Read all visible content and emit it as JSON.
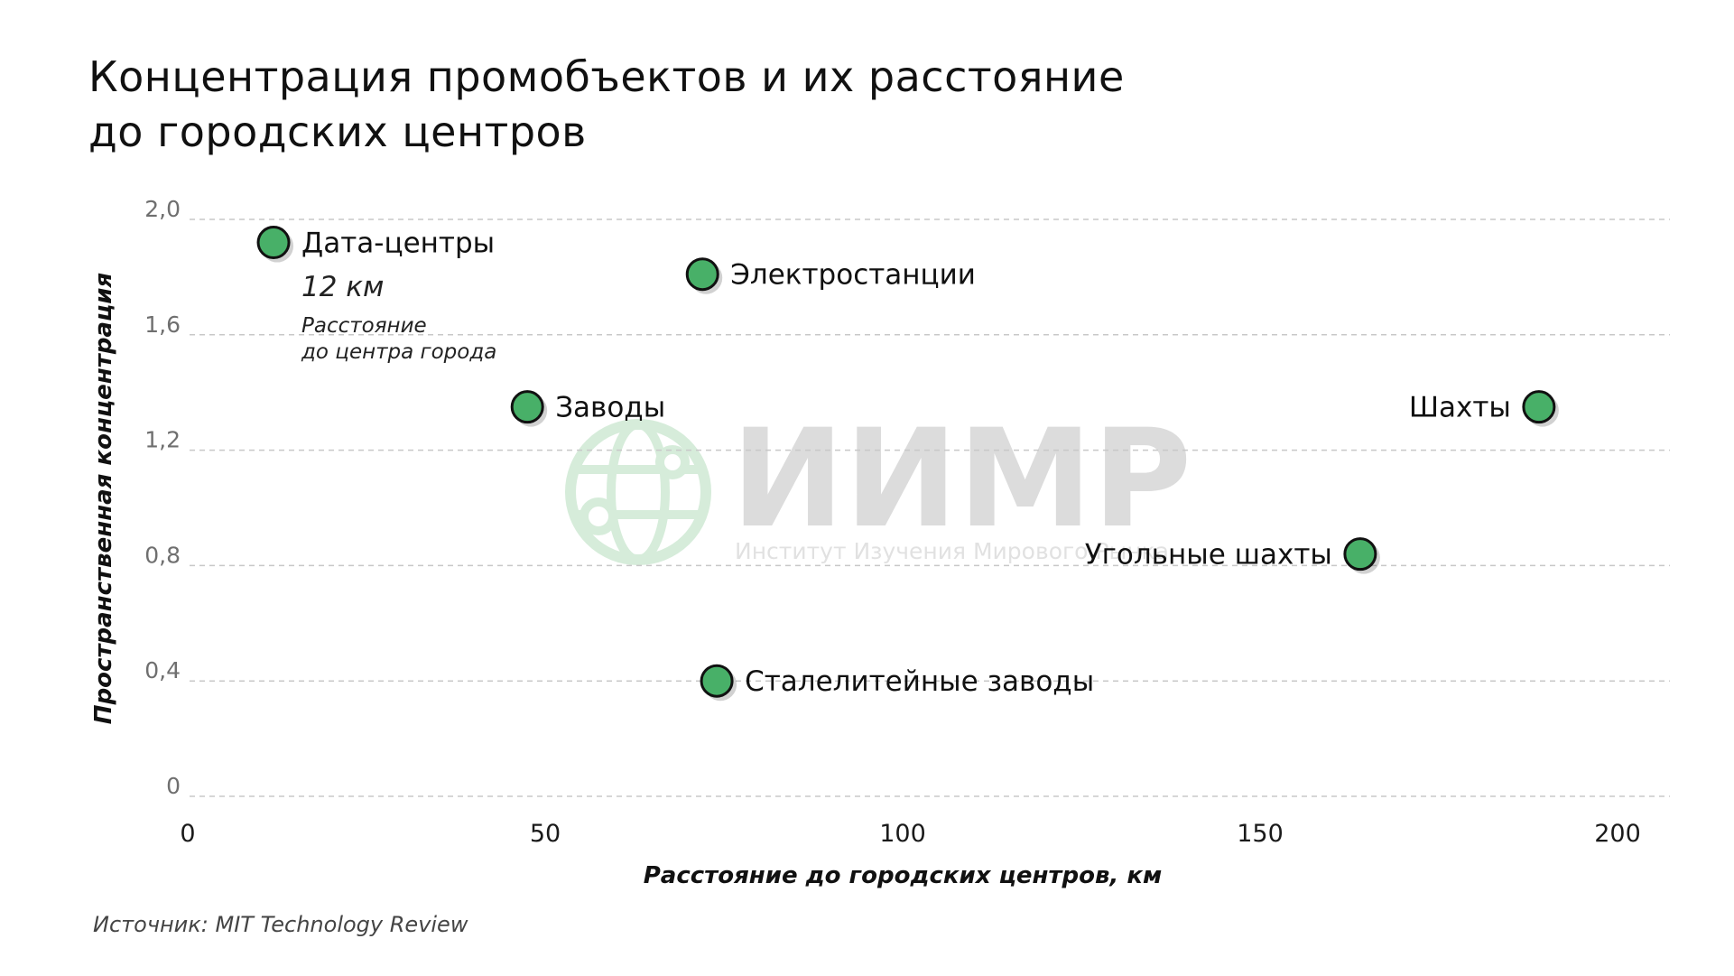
{
  "title_lines": [
    "Концентрация промобъектов и их расстояние",
    "до городских центров"
  ],
  "source": "Источник: MIT Technology Review",
  "watermark": {
    "name": "ИИМР",
    "subtitle": "Институт Изучения Мирового Рынка",
    "color": "#cfe9d4"
  },
  "annotation": {
    "value": "12 км",
    "text_lines": [
      "Расстояние",
      "до центра города"
    ]
  },
  "colors": {
    "marker_fill": "#48b068",
    "marker_stroke": "#111111",
    "grid": "#c8c8c8"
  },
  "chart_data": {
    "type": "scatter",
    "title": "Концентрация промобъектов и их расстояние до городских центров",
    "xlabel": "Расстояние до городских центров, км",
    "ylabel": "Пространственная концентрация",
    "xlim": [
      0,
      200
    ],
    "ylim": [
      0,
      2.0
    ],
    "x_ticks": [
      0,
      50,
      100,
      150,
      200
    ],
    "x_tick_labels": [
      "0",
      "50",
      "100",
      "150",
      "200"
    ],
    "y_ticks": [
      0,
      0.4,
      0.8,
      1.2,
      1.6,
      2.0
    ],
    "y_tick_labels": [
      "0",
      "0,4",
      "0,8",
      "1,2",
      "1,6",
      "2,0"
    ],
    "grid": true,
    "grid_style": "dashed horizontal",
    "points": [
      {
        "label": "Дата-центры",
        "x": 12,
        "y": 1.92,
        "label_side": "right"
      },
      {
        "label": "Электростанции",
        "x": 72,
        "y": 1.81,
        "label_side": "right"
      },
      {
        "label": "Заводы",
        "x": 47.5,
        "y": 1.35,
        "label_side": "right"
      },
      {
        "label": "Шахты",
        "x": 189,
        "y": 1.35,
        "label_side": "left"
      },
      {
        "label": "Угольные шахты",
        "x": 164,
        "y": 0.84,
        "label_side": "left"
      },
      {
        "label": "Сталелитейные заводы",
        "x": 74,
        "y": 0.4,
        "label_side": "right"
      }
    ]
  }
}
